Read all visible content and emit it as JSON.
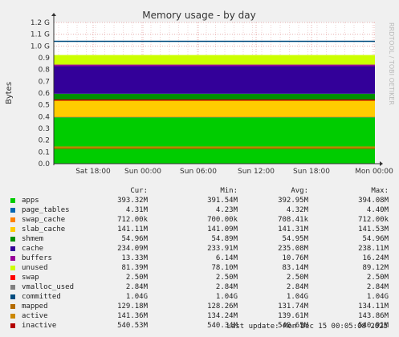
{
  "chart_data": {
    "type": "area",
    "title": "Memory usage - by day",
    "ylabel": "Bytes",
    "side_label": "RRDTOOL / TOBI OETIKER",
    "x_ticks": [
      "Sat 18:00",
      "Sun 00:00",
      "Sun 06:00",
      "Sun 12:00",
      "Sun 18:00",
      "Mon 00:00"
    ],
    "y_ticks": [
      "0.0",
      "0.1",
      "0.2",
      "0.3",
      "0.4",
      "0.5",
      "0.6",
      "0.7",
      "0.8",
      "0.9",
      "1.0 G",
      "1.1 G",
      "1.2 G"
    ],
    "ylim": [
      0,
      1.2
    ],
    "grid": true,
    "stack_order": [
      "apps",
      "page_tables",
      "swap_cache",
      "slab_cache",
      "shmem",
      "cache",
      "buffers",
      "unused"
    ],
    "lines": [
      "committed",
      "mapped",
      "active",
      "inactive"
    ],
    "series": [
      {
        "name": "apps",
        "color": "#00cc00",
        "cur": "393.32M",
        "min": "391.54M",
        "avg": "392.95M",
        "max": "394.08M",
        "value_gb": 0.3933
      },
      {
        "name": "page_tables",
        "color": "#0066b3",
        "cur": "4.31M",
        "min": "4.23M",
        "avg": "4.32M",
        "max": "4.40M",
        "value_gb": 0.0043
      },
      {
        "name": "swap_cache",
        "color": "#ff8000",
        "cur": "712.00k",
        "min": "700.00k",
        "avg": "708.41k",
        "max": "712.00k",
        "value_gb": 0.0007
      },
      {
        "name": "slab_cache",
        "color": "#ffcc00",
        "cur": "141.11M",
        "min": "141.09M",
        "avg": "141.31M",
        "max": "141.53M",
        "value_gb": 0.1411
      },
      {
        "name": "shmem",
        "color": "#008f00",
        "cur": "54.96M",
        "min": "54.89M",
        "avg": "54.95M",
        "max": "54.96M",
        "value_gb": 0.055
      },
      {
        "name": "cache",
        "color": "#330099",
        "cur": "234.09M",
        "min": "233.91M",
        "avg": "235.08M",
        "max": "238.11M",
        "value_gb": 0.2341
      },
      {
        "name": "buffers",
        "color": "#990099",
        "cur": "13.33M",
        "min": "6.14M",
        "avg": "10.76M",
        "max": "16.24M",
        "value_gb": 0.0133
      },
      {
        "name": "unused",
        "color": "#ccff00",
        "cur": "81.39M",
        "min": "78.10M",
        "avg": "83.14M",
        "max": "89.12M",
        "value_gb": 0.0814
      },
      {
        "name": "swap",
        "color": "#ff0000",
        "cur": "2.50M",
        "min": "2.50M",
        "avg": "2.50M",
        "max": "2.50M",
        "value_gb": 0.0025
      },
      {
        "name": "vmalloc_used",
        "color": "#808080",
        "cur": "2.84M",
        "min": "2.84M",
        "avg": "2.84M",
        "max": "2.84M",
        "value_gb": 0.0028
      },
      {
        "name": "committed",
        "color": "#004d80",
        "cur": "1.04G",
        "min": "1.04G",
        "avg": "1.04G",
        "max": "1.04G",
        "value_gb": 1.04
      },
      {
        "name": "mapped",
        "color": "#b36b00",
        "cur": "129.18M",
        "min": "128.26M",
        "avg": "131.74M",
        "max": "134.11M",
        "value_gb": 0.1292
      },
      {
        "name": "active",
        "color": "#cc8800",
        "cur": "141.36M",
        "min": "134.24M",
        "avg": "139.61M",
        "max": "143.86M",
        "value_gb": 0.1414
      },
      {
        "name": "inactive",
        "color": "#b30000",
        "cur": "540.53M",
        "min": "540.34M",
        "avg": "540.65M",
        "max": "540.91M",
        "value_gb": 0.5405
      }
    ]
  },
  "legend": {
    "headers": {
      "cur": "Cur:",
      "min": "Min:",
      "avg": "Avg:",
      "max": "Max:"
    }
  },
  "last_update": "Last update: Mon Dec 15 00:05:08 2025"
}
